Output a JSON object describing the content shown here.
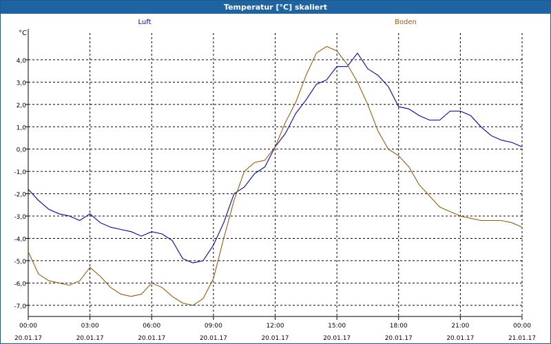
{
  "window": {
    "title": "Temperatur [°C] skaliert"
  },
  "chart_data": {
    "type": "line",
    "title": "Temperatur [°C] skaliert",
    "ylabel": "°C",
    "xlabel": "",
    "ylim": [
      -7.5,
      5.2
    ],
    "xlim": [
      0,
      24
    ],
    "grid": true,
    "y_ticks": [
      "-7,0",
      "-6,0",
      "-5,0",
      "-4,0",
      "-3,0",
      "-2,0",
      "-1,0",
      "0,0",
      "1,0",
      "2,0",
      "3,0",
      "4,0"
    ],
    "y_tick_values": [
      -7,
      -6,
      -5,
      -4,
      -3,
      -2,
      -1,
      0,
      1,
      2,
      3,
      4
    ],
    "x_ticks": [
      {
        "time": "00:00",
        "date": "20.01.17"
      },
      {
        "time": "03:00",
        "date": "20.01.17"
      },
      {
        "time": "06:00",
        "date": "20.01.17"
      },
      {
        "time": "09:00",
        "date": "20.01.17"
      },
      {
        "time": "12:00",
        "date": "20.01.17"
      },
      {
        "time": "15:00",
        "date": "20.01.17"
      },
      {
        "time": "18:00",
        "date": "20.01.17"
      },
      {
        "time": "21:00",
        "date": "20.01.17"
      },
      {
        "time": "00:00",
        "date": "21.01.17"
      }
    ],
    "x_tick_values": [
      0,
      3,
      6,
      9,
      12,
      15,
      18,
      21,
      24
    ],
    "series": [
      {
        "name": "Luft",
        "color": "#0000b0",
        "x": [
          0,
          0.5,
          1,
          1.5,
          2,
          2.5,
          3,
          3.5,
          4,
          4.5,
          5,
          5.5,
          6,
          6.5,
          7,
          7.5,
          8,
          8.5,
          9,
          9.5,
          10,
          10.5,
          11,
          11.5,
          12,
          12.5,
          13,
          13.5,
          14,
          14.5,
          15,
          15.5,
          16,
          16.5,
          17,
          17.5,
          18,
          18.5,
          19,
          19.5,
          20,
          20.5,
          21,
          21.5,
          22,
          22.5,
          23,
          23.5,
          24
        ],
        "values": [
          -1.8,
          -2.3,
          -2.7,
          -2.9,
          -3.0,
          -3.2,
          -2.9,
          -3.3,
          -3.5,
          -3.6,
          -3.7,
          -3.9,
          -3.7,
          -3.8,
          -4.1,
          -4.9,
          -5.1,
          -5.0,
          -4.3,
          -3.3,
          -2.0,
          -1.7,
          -1.1,
          -0.8,
          0.1,
          0.7,
          1.6,
          2.2,
          2.9,
          3.1,
          3.7,
          3.7,
          4.3,
          3.6,
          3.3,
          2.8,
          1.9,
          1.8,
          1.5,
          1.3,
          1.3,
          1.7,
          1.7,
          1.5,
          1.0,
          0.6,
          0.4,
          0.3,
          0.1
        ]
      },
      {
        "name": "Boden",
        "color": "#9a5a10",
        "x": [
          0,
          0.5,
          1,
          1.5,
          2,
          2.5,
          3,
          3.5,
          4,
          4.5,
          5,
          5.5,
          6,
          6.5,
          7,
          7.5,
          8,
          8.5,
          9,
          9.5,
          10,
          10.5,
          11,
          11.5,
          12,
          12.5,
          13,
          13.5,
          14,
          14.5,
          15,
          15.5,
          16,
          16.5,
          17,
          17.5,
          18,
          18.5,
          19,
          19.5,
          20,
          20.5,
          21,
          21.5,
          22,
          22.5,
          23,
          23.5,
          24
        ],
        "values": [
          -4.6,
          -5.6,
          -5.9,
          -6.0,
          -6.1,
          -5.9,
          -5.3,
          -5.7,
          -6.2,
          -6.5,
          -6.6,
          -6.5,
          -6.0,
          -6.2,
          -6.6,
          -6.9,
          -7.0,
          -6.7,
          -5.8,
          -4.0,
          -2.3,
          -1.0,
          -0.6,
          -0.5,
          0.1,
          1.2,
          2.1,
          3.3,
          4.3,
          4.6,
          4.4,
          3.8,
          3.0,
          2.0,
          0.8,
          0.0,
          -0.3,
          -0.8,
          -1.6,
          -2.1,
          -2.6,
          -2.8,
          -3.0,
          -3.1,
          -3.2,
          -3.2,
          -3.2,
          -3.3,
          -3.5
        ]
      }
    ]
  }
}
